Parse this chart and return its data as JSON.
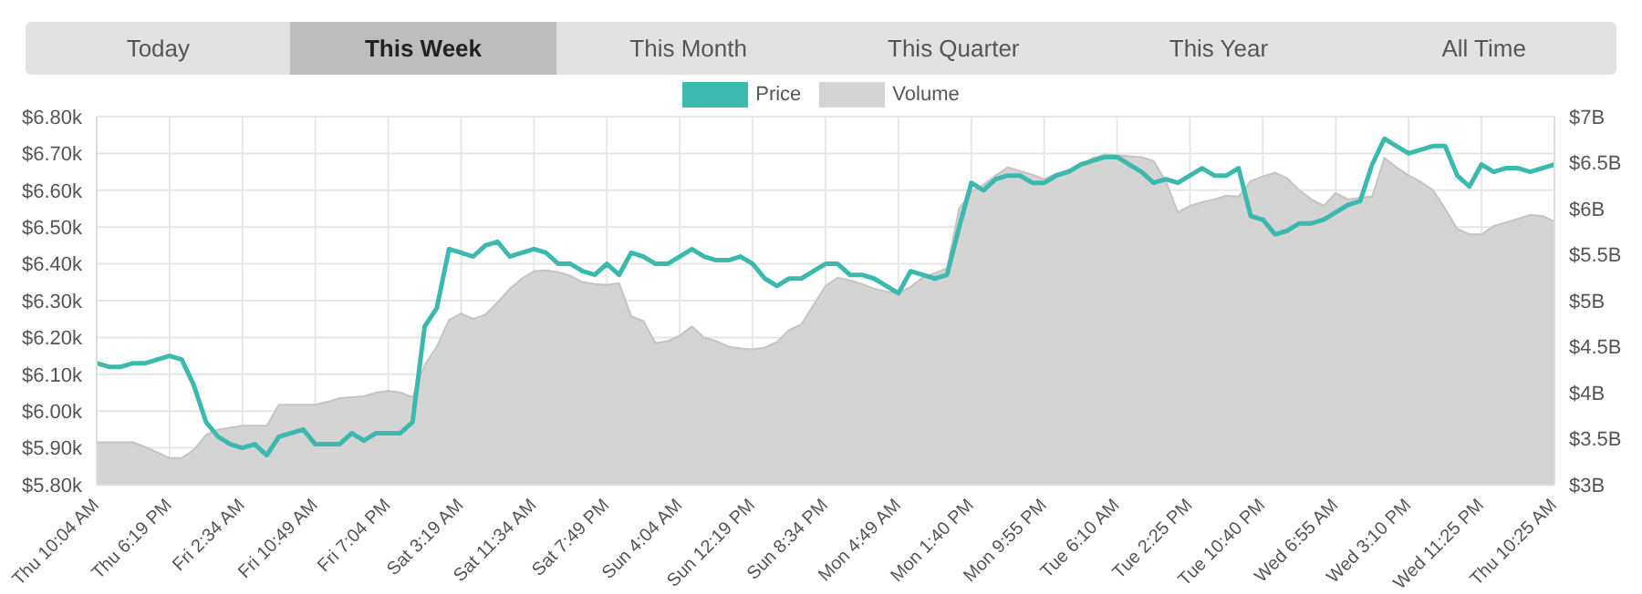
{
  "chart_data": {
    "type": "line",
    "annotations": [
      "Today",
      "This Week",
      "This Month",
      "This Quarter",
      "This Year",
      "All Time"
    ],
    "legend": "top",
    "grid": true,
    "categories": [
      "Thu 10:04 AM",
      null,
      null,
      null,
      null,
      null,
      "Thu 6:19 PM",
      null,
      null,
      null,
      null,
      null,
      "Fri 2:34 AM",
      null,
      null,
      null,
      null,
      null,
      "Fri 10:49 AM",
      null,
      null,
      null,
      null,
      null,
      "Fri 7:04 PM",
      null,
      null,
      null,
      null,
      null,
      "Sat 3:19 AM",
      null,
      null,
      null,
      null,
      null,
      "Sat 11:34 AM",
      null,
      null,
      null,
      null,
      null,
      "Sat 7:49 PM",
      null,
      null,
      null,
      null,
      null,
      "Sun 4:04 AM",
      null,
      null,
      null,
      null,
      null,
      "Sun 12:19 PM",
      null,
      null,
      null,
      null,
      null,
      "Sun 8:34 PM",
      null,
      null,
      null,
      null,
      null,
      "Mon 4:49 AM",
      null,
      null,
      null,
      null,
      null,
      "Mon 1:40 PM",
      null,
      null,
      null,
      null,
      null,
      "Mon 9:55 PM",
      null,
      null,
      null,
      null,
      null,
      "Tue 6:10 AM",
      null,
      null,
      null,
      null,
      null,
      "Tue 2:25 PM",
      null,
      null,
      null,
      null,
      null,
      "Tue 10:40 PM",
      null,
      null,
      null,
      null,
      null,
      "Wed 6:55 AM",
      null,
      null,
      null,
      null,
      null,
      "Wed 3:10 PM",
      null,
      null,
      null,
      null,
      null,
      "Wed 11:25 PM",
      null,
      null,
      null,
      null,
      null,
      "Thu 10:25 AM"
    ],
    "ylim": [
      5.8,
      6.8
    ],
    "yticks": [
      {
        "value": 5.8,
        "label": "$5.80k"
      },
      {
        "value": 5.9,
        "label": "$5.90k"
      },
      {
        "value": 6.0,
        "label": "$6.00k"
      },
      {
        "value": 6.1,
        "label": "$6.10k"
      },
      {
        "value": 6.2,
        "label": "$6.20k"
      },
      {
        "value": 6.3,
        "label": "$6.30k"
      },
      {
        "value": 6.4,
        "label": "$6.40k"
      },
      {
        "value": 6.5,
        "label": "$6.50k"
      },
      {
        "value": 6.6,
        "label": "$6.60k"
      },
      {
        "value": 6.7,
        "label": "$6.70k"
      },
      {
        "value": 6.8,
        "label": "$6.80k"
      }
    ],
    "y2lim": [
      3,
      7
    ],
    "y2ticks": [
      {
        "value": 3,
        "label": "$3B"
      },
      {
        "value": 3.5,
        "label": "$3.5B"
      },
      {
        "value": 4,
        "label": "$4B"
      },
      {
        "value": 4.5,
        "label": "$4.5B"
      },
      {
        "value": 5,
        "label": "$5B"
      },
      {
        "value": 5.5,
        "label": "$5.5B"
      },
      {
        "value": 6,
        "label": "$6B"
      },
      {
        "value": 6.5,
        "label": "$6.5B"
      },
      {
        "value": 7,
        "label": "$7B"
      }
    ],
    "series": [
      {
        "name": "Price",
        "type": "line",
        "color": "#3cb9ad",
        "values": [
          6.13,
          6.12,
          6.12,
          6.13,
          6.13,
          6.14,
          6.15,
          6.14,
          6.07,
          5.97,
          5.93,
          5.91,
          5.9,
          5.91,
          5.88,
          5.93,
          5.94,
          5.95,
          5.91,
          5.91,
          5.91,
          5.94,
          5.92,
          5.94,
          5.94,
          5.94,
          5.97,
          6.23,
          6.28,
          6.44,
          6.43,
          6.42,
          6.45,
          6.46,
          6.42,
          6.43,
          6.44,
          6.43,
          6.4,
          6.4,
          6.38,
          6.37,
          6.4,
          6.37,
          6.43,
          6.42,
          6.4,
          6.4,
          6.42,
          6.44,
          6.42,
          6.41,
          6.41,
          6.42,
          6.4,
          6.36,
          6.34,
          6.36,
          6.36,
          6.38,
          6.4,
          6.4,
          6.37,
          6.37,
          6.36,
          6.34,
          6.32,
          6.38,
          6.37,
          6.36,
          6.37,
          6.5,
          6.62,
          6.6,
          6.63,
          6.64,
          6.64,
          6.62,
          6.62,
          6.64,
          6.65,
          6.67,
          6.68,
          6.69,
          6.69,
          6.67,
          6.65,
          6.62,
          6.63,
          6.62,
          6.64,
          6.66,
          6.64,
          6.64,
          6.66,
          6.53,
          6.52,
          6.48,
          6.49,
          6.51,
          6.51,
          6.52,
          6.54,
          6.56,
          6.57,
          6.67,
          6.74,
          6.72,
          6.7,
          6.71,
          6.72,
          6.72,
          6.64,
          6.61,
          6.67,
          6.65,
          6.66,
          6.66,
          6.65,
          6.66,
          6.67
        ]
      },
      {
        "name": "Volume",
        "type": "area",
        "axis": "y2",
        "color": "#d4d4d4",
        "values": [
          3.46,
          3.46,
          3.46,
          3.46,
          3.41,
          3.35,
          3.29,
          3.29,
          3.38,
          3.54,
          3.6,
          3.62,
          3.64,
          3.64,
          3.64,
          3.87,
          3.87,
          3.87,
          3.87,
          3.9,
          3.94,
          3.95,
          3.96,
          4.0,
          4.02,
          4.0,
          3.95,
          4.3,
          4.5,
          4.79,
          4.86,
          4.8,
          4.85,
          4.98,
          5.13,
          5.24,
          5.32,
          5.33,
          5.31,
          5.27,
          5.2,
          5.18,
          5.17,
          5.19,
          4.83,
          4.78,
          4.54,
          4.56,
          4.62,
          4.72,
          4.6,
          4.56,
          4.5,
          4.48,
          4.47,
          4.49,
          4.55,
          4.68,
          4.74,
          4.95,
          5.16,
          5.25,
          5.22,
          5.18,
          5.13,
          5.1,
          5.08,
          5.15,
          5.25,
          5.3,
          5.35,
          6.0,
          6.18,
          6.26,
          6.36,
          6.45,
          6.41,
          6.37,
          6.32,
          6.38,
          6.42,
          6.46,
          6.55,
          6.59,
          6.58,
          6.57,
          6.56,
          6.52,
          6.3,
          5.96,
          6.03,
          6.07,
          6.1,
          6.14,
          6.13,
          6.3,
          6.35,
          6.39,
          6.33,
          6.2,
          6.1,
          6.03,
          6.17,
          6.1,
          6.12,
          6.13,
          6.55,
          6.45,
          6.36,
          6.29,
          6.2,
          6.0,
          5.78,
          5.72,
          5.72,
          5.81,
          5.85,
          5.89,
          5.93,
          5.92,
          5.86
        ]
      }
    ]
  }
}
